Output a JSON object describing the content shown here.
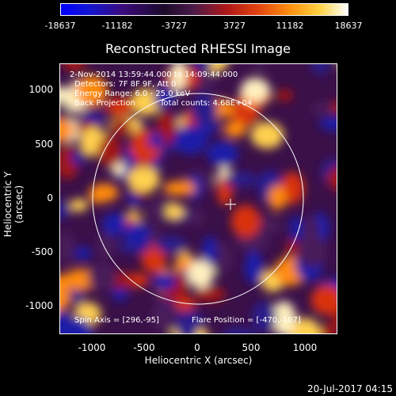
{
  "colorbar": {
    "ticks": [
      "-18637",
      "-11182",
      "-3727",
      "3727",
      "11182",
      "18637"
    ]
  },
  "title": "Reconstructed RHESSI Image",
  "info": {
    "time_range": "2-Nov-2014 13:59:44.000 to 14:09:44.000",
    "detectors": "Detectors: 7F 8F 9F, Att 0",
    "energy_range": "Energy Range: 6.0 - 25.0 keV",
    "method": "Back Projection",
    "total_counts": "Total counts: 4.68E+04",
    "spin_axis": "Spin Axis = [296,-95]",
    "flare_position": "Flare Position = [-470,-107]"
  },
  "axes": {
    "xlabel": "Heliocentric X (arcsec)",
    "ylabel": "Heliocentric Y (arcsec)",
    "xticks": [
      "-1000",
      "-500",
      "0",
      "500",
      "1000"
    ],
    "yticks": [
      "1000",
      "500",
      "0",
      "-500",
      "-1000"
    ]
  },
  "timestamp": "20-Jul-2017 04:15",
  "colors": {
    "background": "#000000",
    "foreground": "#ffffff"
  }
}
